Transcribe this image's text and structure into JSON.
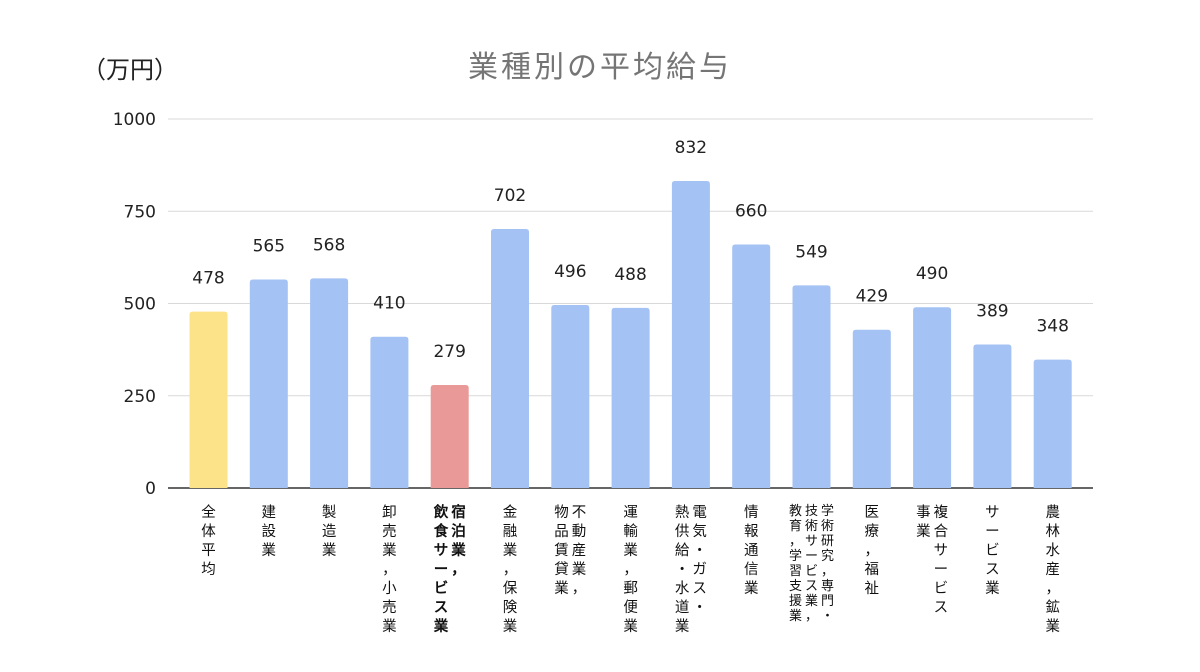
{
  "unit_label": "（万円）",
  "chart_data": {
    "type": "bar",
    "title": "業種別の平均給与",
    "ylabel": "（万円）",
    "ylim": [
      0,
      1000
    ],
    "yticks": [
      0,
      250,
      500,
      750,
      1000
    ],
    "grid": true,
    "legend": "none",
    "categories": [
      {
        "label": "全体平均",
        "lines": [
          "全体平均"
        ],
        "value": 478,
        "color": "#fce38a",
        "bold": false
      },
      {
        "label": "建設業",
        "lines": [
          "建設業"
        ],
        "value": 565,
        "color": "#a4c2f4",
        "bold": false
      },
      {
        "label": "製造業",
        "lines": [
          "製造業"
        ],
        "value": 568,
        "color": "#a4c2f4",
        "bold": false
      },
      {
        "label": "卸売業，小売業",
        "lines": [
          "卸売業，小売業"
        ],
        "value": 410,
        "color": "#a4c2f4",
        "bold": false
      },
      {
        "label": "宿泊業，飲食サービス業",
        "lines": [
          "宿泊業，",
          "飲食サービス業"
        ],
        "value": 279,
        "color": "#ea9999",
        "bold": true
      },
      {
        "label": "金融業，保険業",
        "lines": [
          "金融業，保険業"
        ],
        "value": 702,
        "color": "#a4c2f4",
        "bold": false
      },
      {
        "label": "不動産業，物品賃貸業",
        "lines": [
          "不動産業，",
          "物品賃貸業"
        ],
        "value": 496,
        "color": "#a4c2f4",
        "bold": false
      },
      {
        "label": "運輸業，郵便業",
        "lines": [
          "運輸業，郵便業"
        ],
        "value": 488,
        "color": "#a4c2f4",
        "bold": false
      },
      {
        "label": "電気・ガス・熱供給・水道業",
        "lines": [
          "電気・ガス・",
          "熱供給・水道業"
        ],
        "value": 832,
        "color": "#a4c2f4",
        "bold": false
      },
      {
        "label": "情報通信業",
        "lines": [
          "情報通信業"
        ],
        "value": 660,
        "color": "#a4c2f4",
        "bold": false
      },
      {
        "label": "学術研究，専門・技術サービス業，教育，学習支援業",
        "lines": [
          "学術研究，専門・",
          "技術サービス業，",
          "教育，学習支援業"
        ],
        "value": 549,
        "color": "#a4c2f4",
        "bold": false
      },
      {
        "label": "医療，福祉",
        "lines": [
          "医療，福祉"
        ],
        "value": 429,
        "color": "#a4c2f4",
        "bold": false
      },
      {
        "label": "複合サービス事業",
        "lines": [
          "複合サービス",
          "事業"
        ],
        "value": 490,
        "color": "#a4c2f4",
        "bold": false
      },
      {
        "label": "サービス業",
        "lines": [
          "サービス業"
        ],
        "value": 389,
        "color": "#a4c2f4",
        "bold": false
      },
      {
        "label": "農林水産，鉱業",
        "lines": [
          "農林水産，鉱業"
        ],
        "value": 348,
        "color": "#a4c2f4",
        "bold": false
      }
    ]
  }
}
